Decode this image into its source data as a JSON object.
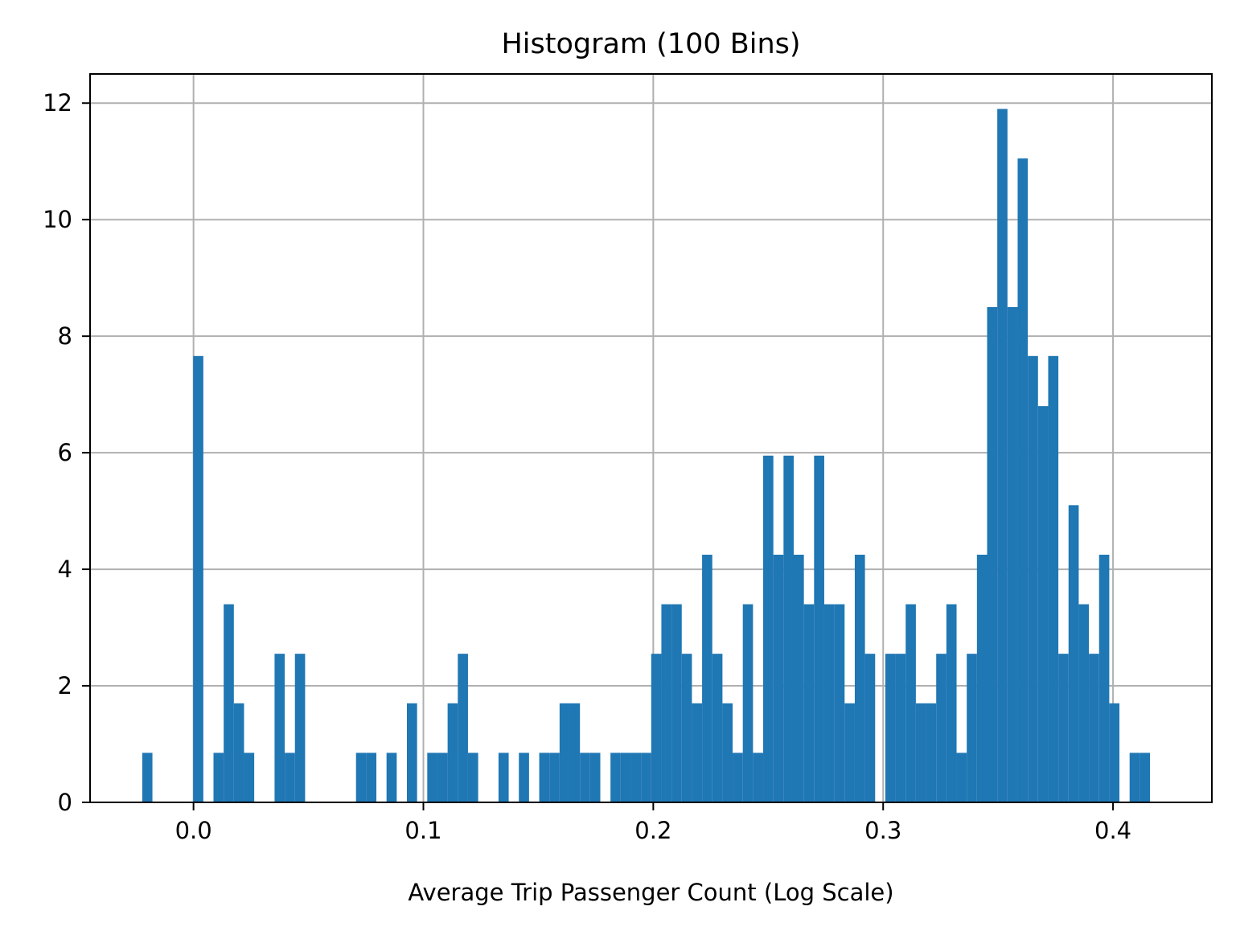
{
  "chart_data": {
    "type": "bar",
    "title": "Histogram (100 Bins)",
    "xlabel": "Average Trip Passenger Count (Log Scale)",
    "ylabel": "",
    "bar_color": "#1f77b4",
    "grid": true,
    "xlim": [
      -0.045,
      0.443
    ],
    "ylim": [
      0,
      12.5
    ],
    "xticks": [
      0.0,
      0.1,
      0.2,
      0.3,
      0.4
    ],
    "xtick_labels": [
      "0.0",
      "0.1",
      "0.2",
      "0.3",
      "0.4"
    ],
    "yticks": [
      0,
      2,
      4,
      6,
      8,
      10,
      12
    ],
    "ytick_labels": [
      "0",
      "2",
      "4",
      "6",
      "8",
      "10",
      "12"
    ],
    "bin_start": -0.0223,
    "bin_end": 0.4205,
    "density": [
      0.85,
      0,
      0,
      0,
      0,
      7.66,
      0,
      0.85,
      3.4,
      1.7,
      0.85,
      0,
      0,
      2.55,
      0.85,
      2.55,
      0,
      0,
      0,
      0,
      0,
      0.85,
      0.85,
      0,
      0.85,
      0,
      1.7,
      0,
      0.85,
      0.85,
      1.7,
      2.55,
      0.85,
      0,
      0,
      0.85,
      0,
      0.85,
      0,
      0.85,
      0.85,
      1.7,
      1.7,
      0.85,
      0.85,
      0,
      0.85,
      0.85,
      0.85,
      0.85,
      2.55,
      3.4,
      3.4,
      2.55,
      1.7,
      4.25,
      2.55,
      1.7,
      0.85,
      3.4,
      0.85,
      5.95,
      4.25,
      5.95,
      4.25,
      3.4,
      5.95,
      3.4,
      3.4,
      1.7,
      4.25,
      2.55,
      0,
      2.55,
      2.55,
      3.4,
      1.7,
      1.7,
      2.55,
      3.4,
      0.85,
      2.55,
      4.25,
      8.5,
      11.9,
      8.5,
      11.05,
      7.66,
      6.8,
      7.66,
      2.55,
      5.1,
      3.4,
      2.55,
      4.25,
      1.7,
      0,
      0.85,
      0.85,
      0
    ]
  }
}
